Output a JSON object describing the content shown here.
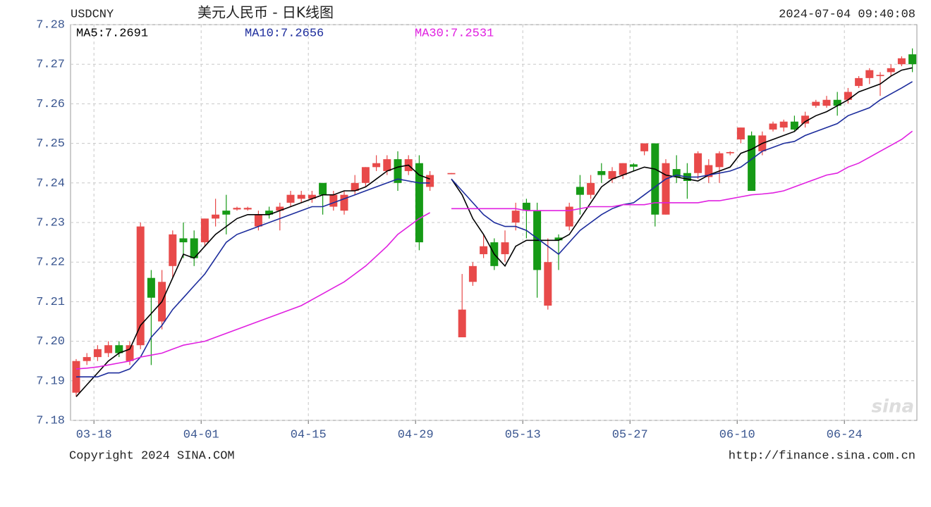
{
  "chart_data": {
    "type": "candlestick",
    "symbol": "USDCNY",
    "title": "美元人民币 - 日K线图",
    "timestamp": "2024-07-04 09:40:08",
    "copyright": "Copyright 2024 SINA.COM",
    "source_url": "http://finance.sina.com.cn",
    "watermark": "sina",
    "up_color": "#e84a4a",
    "down_color": "#169a16",
    "grid": true,
    "categories": [
      null,
      "03-18",
      null,
      null,
      null,
      null,
      null,
      null,
      null,
      null,
      null,
      "04-01",
      null,
      null,
      null,
      null,
      null,
      null,
      null,
      null,
      null,
      "04-15",
      null,
      null,
      null,
      null,
      null,
      null,
      null,
      null,
      null,
      "04-29",
      null,
      null,
      null,
      null,
      null,
      null,
      null,
      null,
      null,
      "05-13",
      null,
      null,
      null,
      null,
      null,
      null,
      null,
      null,
      null,
      "05-27",
      null,
      null,
      null,
      null,
      null,
      null,
      null,
      null,
      null,
      "06-10",
      null,
      null,
      null,
      null,
      null,
      null,
      null,
      null,
      null,
      "06-24",
      null,
      null,
      null,
      null,
      null,
      null,
      null
    ],
    "open": [
      7.187,
      7.195,
      7.196,
      7.197,
      7.199,
      7.195,
      7.199,
      7.216,
      7.205,
      7.219,
      7.226,
      7.226,
      7.225,
      7.231,
      7.233,
      7.2333,
      7.2333,
      7.229,
      7.233,
      7.233,
      7.235,
      7.236,
      7.236,
      7.24,
      7.234,
      7.233,
      7.238,
      7.24,
      7.244,
      7.243,
      7.246,
      7.243,
      7.245,
      7.239,
      null,
      7.2422,
      7.201,
      7.215,
      7.222,
      7.225,
      7.222,
      7.23,
      7.235,
      7.233,
      7.209,
      7.2262,
      7.229,
      7.239,
      7.237,
      7.243,
      7.241,
      7.242,
      7.2447,
      7.248,
      7.25,
      7.232,
      7.2435,
      7.2425,
      7.2425,
      7.2415,
      7.244,
      7.2475,
      7.251,
      7.252,
      7.248,
      7.2535,
      7.254,
      7.2555,
      7.255,
      7.2595,
      7.2595,
      7.261,
      7.261,
      7.2645,
      7.2665,
      7.267,
      7.268,
      7.27,
      7.2725
    ],
    "high": [
      7.1955,
      7.197,
      7.199,
      7.2,
      7.2,
      7.2,
      7.23,
      7.218,
      7.218,
      7.228,
      7.23,
      7.228,
      7.231,
      7.236,
      7.237,
      7.234,
      7.234,
      7.233,
      7.234,
      7.235,
      7.238,
      7.238,
      7.238,
      7.24,
      7.238,
      7.238,
      7.242,
      7.244,
      7.247,
      7.247,
      7.248,
      7.247,
      7.247,
      7.243,
      null,
      7.2425,
      7.217,
      7.22,
      7.227,
      7.226,
      7.228,
      7.235,
      7.236,
      7.235,
      7.226,
      7.227,
      7.235,
      7.242,
      7.242,
      7.245,
      7.244,
      7.245,
      7.245,
      7.25,
      7.25,
      7.246,
      7.247,
      7.245,
      7.248,
      7.246,
      7.248,
      7.248,
      7.254,
      7.253,
      7.253,
      7.2555,
      7.256,
      7.257,
      7.258,
      7.261,
      7.262,
      7.263,
      7.264,
      7.267,
      7.269,
      7.268,
      7.27,
      7.272,
      7.274
    ],
    "low": [
      7.186,
      7.194,
      7.195,
      7.196,
      7.196,
      7.194,
      7.198,
      7.194,
      7.203,
      7.216,
      7.221,
      7.219,
      7.224,
      7.229,
      7.227,
      7.233,
      7.233,
      7.228,
      7.231,
      7.228,
      7.234,
      7.235,
      7.235,
      7.232,
      7.233,
      7.232,
      7.237,
      7.239,
      7.243,
      7.242,
      7.238,
      7.242,
      7.223,
      7.238,
      null,
      7.2422,
      7.201,
      7.214,
      7.221,
      7.218,
      7.22,
      7.228,
      7.226,
      7.211,
      7.208,
      7.218,
      7.228,
      7.232,
      7.236,
      7.24,
      7.24,
      7.241,
      7.243,
      7.247,
      7.229,
      7.232,
      7.24,
      7.236,
      7.241,
      7.24,
      7.24,
      7.247,
      7.25,
      7.238,
      7.247,
      7.253,
      7.253,
      7.253,
      7.254,
      7.259,
      7.259,
      7.257,
      7.26,
      7.264,
      7.265,
      7.262,
      7.267,
      7.2695,
      7.268
    ],
    "close": [
      7.195,
      7.196,
      7.198,
      7.199,
      7.197,
      7.199,
      7.229,
      7.211,
      7.215,
      7.227,
      7.225,
      7.221,
      7.231,
      7.232,
      7.232,
      7.2337,
      7.2337,
      7.232,
      7.232,
      7.234,
      7.237,
      7.237,
      7.237,
      7.237,
      7.237,
      7.237,
      7.24,
      7.244,
      7.245,
      7.246,
      7.24,
      7.246,
      7.225,
      7.242,
      null,
      7.2425,
      7.208,
      7.219,
      7.224,
      7.219,
      7.225,
      7.233,
      7.233,
      7.218,
      7.22,
      7.2255,
      7.234,
      7.237,
      7.24,
      7.242,
      7.243,
      7.245,
      7.2441,
      7.25,
      7.232,
      7.245,
      7.2415,
      7.2405,
      7.2475,
      7.2445,
      7.2475,
      7.2478,
      7.254,
      7.238,
      7.252,
      7.255,
      7.2555,
      7.2535,
      7.257,
      7.2605,
      7.261,
      7.2595,
      7.263,
      7.2665,
      7.2685,
      7.2673,
      7.269,
      7.2715,
      7.27
    ],
    "series": [
      {
        "name": "MA5:7.2691",
        "color": "#000000",
        "values": [
          7.186,
          7.189,
          7.192,
          7.195,
          7.197,
          7.198,
          7.204,
          7.207,
          7.21,
          7.216,
          7.222,
          7.221,
          7.224,
          7.227,
          7.229,
          7.231,
          7.232,
          7.232,
          7.232,
          7.233,
          7.234,
          7.235,
          7.236,
          7.237,
          7.237,
          7.238,
          7.238,
          7.239,
          7.241,
          7.243,
          7.244,
          7.2445,
          7.242,
          7.241,
          null,
          7.241,
          7.237,
          7.231,
          7.227,
          7.222,
          7.219,
          7.224,
          7.2255,
          7.2255,
          7.2255,
          7.2255,
          7.227,
          7.231,
          7.235,
          7.239,
          7.241,
          7.242,
          7.243,
          7.244,
          7.2435,
          7.242,
          7.2415,
          7.241,
          7.2405,
          7.242,
          7.243,
          7.244,
          7.2475,
          7.2485,
          7.25,
          7.251,
          7.252,
          7.253,
          7.2555,
          7.257,
          7.258,
          7.2595,
          7.261,
          7.263,
          7.264,
          7.265,
          7.267,
          7.2685,
          7.2691
        ]
      },
      {
        "name": "MA10:7.2656",
        "color": "#1c2c9c",
        "values": [
          7.191,
          7.191,
          7.191,
          7.192,
          7.192,
          7.193,
          7.196,
          7.201,
          7.204,
          7.208,
          7.211,
          7.214,
          7.217,
          7.221,
          7.225,
          7.227,
          7.228,
          7.229,
          7.23,
          7.231,
          7.232,
          7.233,
          7.234,
          7.234,
          7.235,
          7.236,
          7.237,
          7.238,
          7.239,
          7.24,
          7.241,
          7.2405,
          7.24,
          7.24,
          null,
          7.241,
          7.238,
          7.235,
          7.232,
          7.23,
          7.229,
          7.229,
          7.228,
          7.226,
          7.224,
          7.222,
          7.225,
          7.228,
          7.23,
          7.232,
          7.2335,
          7.2345,
          7.235,
          7.237,
          7.239,
          7.241,
          7.242,
          7.2415,
          7.2415,
          7.242,
          7.2425,
          7.243,
          7.244,
          7.246,
          7.248,
          7.249,
          7.25,
          7.2505,
          7.252,
          7.253,
          7.254,
          7.255,
          7.257,
          7.258,
          7.259,
          7.261,
          7.2625,
          7.264,
          7.2656
        ]
      },
      {
        "name": "MA30:7.2531",
        "color": "#e020e0",
        "values": [
          7.193,
          7.1932,
          7.1935,
          7.194,
          7.1945,
          7.195,
          7.196,
          7.1965,
          7.197,
          7.198,
          7.199,
          7.1995,
          7.2,
          7.201,
          7.202,
          7.203,
          7.204,
          7.205,
          7.206,
          7.207,
          7.208,
          7.209,
          7.2105,
          7.212,
          7.2135,
          7.215,
          7.217,
          7.219,
          7.2215,
          7.224,
          7.227,
          7.229,
          7.231,
          7.2325,
          null,
          7.2335,
          7.2335,
          7.2335,
          7.2335,
          7.2335,
          7.2335,
          7.2335,
          7.233,
          7.233,
          7.233,
          7.233,
          7.233,
          7.2335,
          7.234,
          7.234,
          7.234,
          7.2345,
          7.2345,
          7.2345,
          7.235,
          7.235,
          7.235,
          7.235,
          7.235,
          7.2355,
          7.2355,
          7.236,
          7.2365,
          7.237,
          7.2372,
          7.2375,
          7.238,
          7.239,
          7.24,
          7.241,
          7.242,
          7.2425,
          7.244,
          7.245,
          7.2465,
          7.248,
          7.2495,
          7.251,
          7.2531
        ]
      }
    ],
    "ylim": [
      7.18,
      7.28
    ],
    "yticks": [
      7.18,
      7.19,
      {
        "value": 7.2,
        "label": "7.20"
      },
      7.21,
      7.22,
      7.23,
      7.24,
      7.25,
      7.26,
      7.27,
      7.28
    ]
  }
}
